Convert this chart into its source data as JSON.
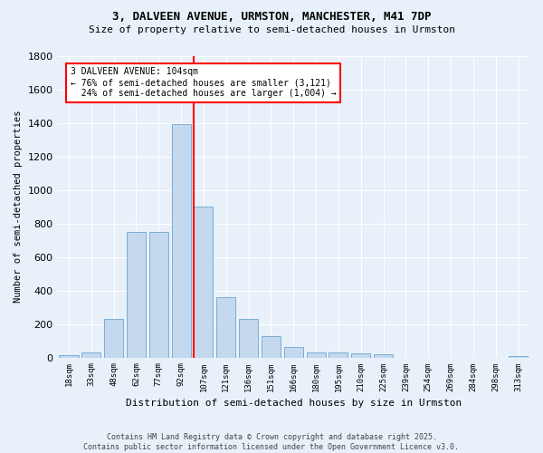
{
  "title1": "3, DALVEEN AVENUE, URMSTON, MANCHESTER, M41 7DP",
  "title2": "Size of property relative to semi-detached houses in Urmston",
  "xlabel": "Distribution of semi-detached houses by size in Urmston",
  "ylabel": "Number of semi-detached properties",
  "footer1": "Contains HM Land Registry data © Crown copyright and database right 2025.",
  "footer2": "Contains public sector information licensed under the Open Government Licence v3.0.",
  "bar_labels": [
    "18sqm",
    "33sqm",
    "48sqm",
    "62sqm",
    "77sqm",
    "92sqm",
    "107sqm",
    "121sqm",
    "136sqm",
    "151sqm",
    "166sqm",
    "180sqm",
    "195sqm",
    "210sqm",
    "225sqm",
    "239sqm",
    "254sqm",
    "269sqm",
    "284sqm",
    "298sqm",
    "313sqm"
  ],
  "bar_heights": [
    15,
    30,
    230,
    750,
    750,
    1390,
    900,
    360,
    230,
    130,
    60,
    30,
    30,
    25,
    20,
    0,
    0,
    0,
    0,
    0,
    10
  ],
  "bar_color": "#c5d9ee",
  "bar_edge_color": "#7aadd4",
  "ylim_max": 1800,
  "yticks": [
    0,
    200,
    400,
    600,
    800,
    1000,
    1200,
    1400,
    1600,
    1800
  ],
  "vline_bin_index": 6,
  "annotation_line1": "3 DALVEEN AVENUE: 104sqm",
  "annotation_line2": "← 76% of semi-detached houses are smaller (3,121)",
  "annotation_line3": "24% of semi-detached houses are larger (1,004) →",
  "annotation_box_facecolor": "white",
  "annotation_box_edgecolor": "red",
  "vline_color": "red",
  "background_color": "#e8f1fa",
  "grid_color": "white",
  "title1_fontsize": 9,
  "title2_fontsize": 8,
  "ylabel_fontsize": 7.5,
  "xlabel_fontsize": 8,
  "footer_fontsize": 6,
  "xtick_fontsize": 6.5,
  "ytick_fontsize": 8
}
